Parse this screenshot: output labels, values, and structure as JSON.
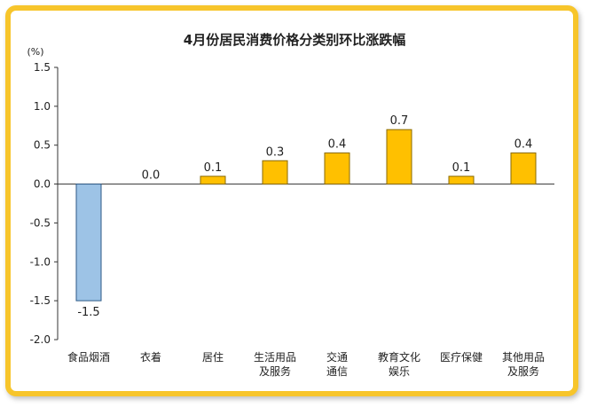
{
  "chart_data": {
    "type": "bar",
    "title": "4月份居民消费价格分类别环比涨跌幅",
    "ylabel": "(%)",
    "xlabel": "",
    "ylim": [
      -2.0,
      1.5
    ],
    "yticks": [
      1.5,
      1.0,
      0.5,
      0.0,
      -0.5,
      -1.0,
      -1.5,
      -2.0
    ],
    "ytick_labels": [
      "1.5",
      "1.0",
      "0.5",
      "0.0",
      "-0.5",
      "-1.0",
      "-1.5",
      "-2.0"
    ],
    "categories": [
      [
        "食品烟酒"
      ],
      [
        "衣着"
      ],
      [
        "居住"
      ],
      [
        "生活用品",
        "及服务"
      ],
      [
        "交通",
        "通信"
      ],
      [
        "教育文化",
        "娱乐"
      ],
      [
        "医疗保健"
      ],
      [
        "其他用品",
        "及服务"
      ]
    ],
    "values": [
      -1.5,
      0.0,
      0.1,
      0.3,
      0.4,
      0.7,
      0.1,
      0.4
    ],
    "value_labels": [
      "-1.5",
      "0.0",
      "0.1",
      "0.3",
      "0.4",
      "0.7",
      "0.1",
      "0.4"
    ],
    "colors": {
      "positive": "#FFC000",
      "positive_stroke": "#8A6A00",
      "negative": "#9DC3E6",
      "negative_stroke": "#2E5A87",
      "frame": "#F7C52B"
    },
    "grid": false,
    "legend": "none"
  }
}
